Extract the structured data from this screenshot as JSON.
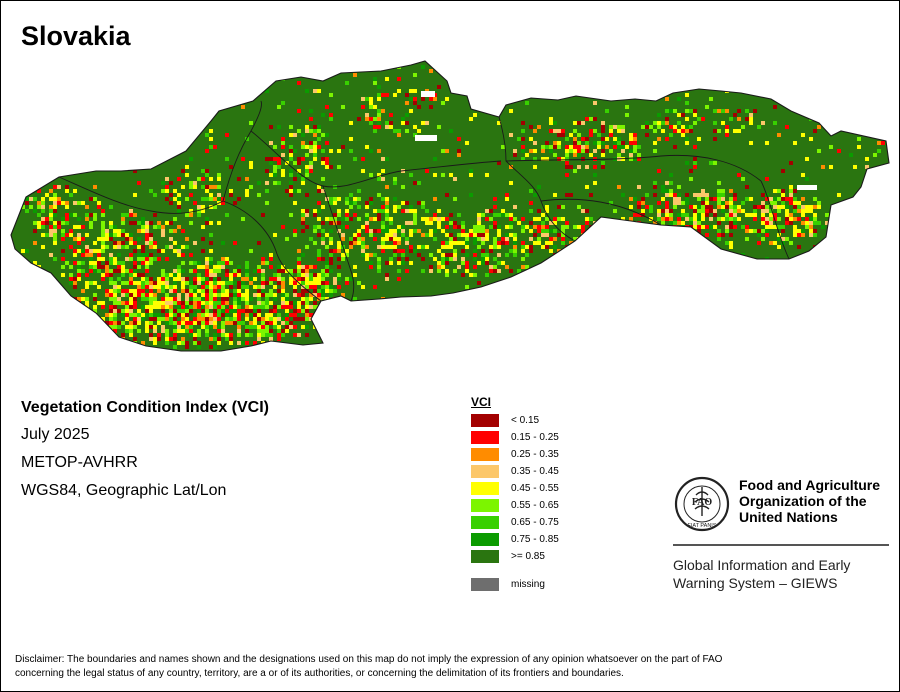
{
  "map": {
    "title": "Slovakia",
    "colors": {
      "base": "#2a7510",
      "border": "#1a1a1a",
      "missing": "#ffffff"
    }
  },
  "info": {
    "title": "Vegetation Condition Index (VCI)",
    "date": "July 2025",
    "sensor": "METOP-AVHRR",
    "projection": "WGS84, Geographic Lat/Lon"
  },
  "legend": {
    "title": "VCI",
    "items": [
      {
        "label": "< 0.15",
        "color": "#a30000"
      },
      {
        "label": "0.15 - 0.25",
        "color": "#ff0000"
      },
      {
        "label": "0.25 - 0.35",
        "color": "#ff8c00"
      },
      {
        "label": "0.35 - 0.45",
        "color": "#fcc76a"
      },
      {
        "label": "0.45 - 0.55",
        "color": "#ffff00"
      },
      {
        "label": "0.55 - 0.65",
        "color": "#7cf500"
      },
      {
        "label": "0.65 - 0.75",
        "color": "#38d000"
      },
      {
        "label": "0.75 - 0.85",
        "color": "#0b9b00"
      },
      {
        "label": ">= 0.85",
        "color": "#2a7510"
      }
    ],
    "missing": {
      "label": "missing",
      "color": "#6e6e6e"
    }
  },
  "logo": {
    "emblem_letters": "FAO",
    "motto": "FIAT PANIS",
    "org_line1": "Food and Agriculture",
    "org_line2": "Organization of the",
    "org_line3": "United Nations",
    "giews_line1": "Global Information and Early",
    "giews_line2": "Warning System – GIEWS"
  },
  "disclaimer": {
    "line1": "Disclaimer: The boundaries and names shown and the designations used on this map do not imply the expression of any opinion whatsoever on the part of FAO",
    "line2": "concerning the legal status of any country, territory, are a or of its authorities, or concerning the delimitation of its frontiers and boundaries."
  }
}
